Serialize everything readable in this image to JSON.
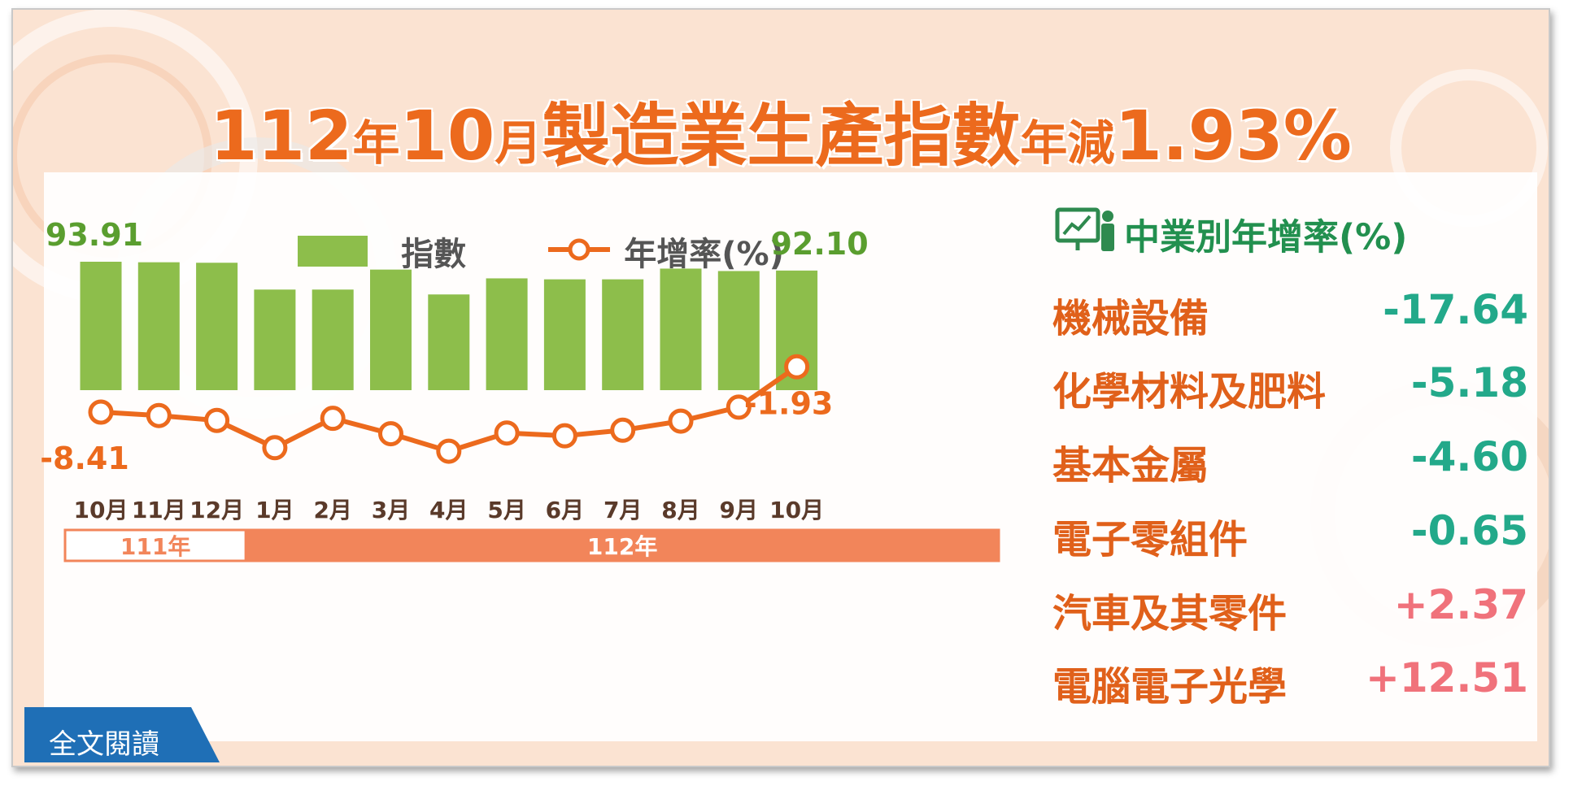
{
  "title": {
    "part1": "112",
    "part2": "年",
    "part3": "10",
    "part4": "月",
    "part5": "製造業生產指數",
    "part6": "年減",
    "part7": "1.93%"
  },
  "legend": {
    "index_label": "指數",
    "rate_label": "年增率(%)"
  },
  "chart_data": {
    "type": "bar",
    "categories": [
      "10月",
      "11月",
      "12月",
      "1月",
      "2月",
      "3月",
      "4月",
      "5月",
      "6月",
      "7月",
      "8月",
      "9月",
      "10月"
    ],
    "year_groups": [
      {
        "label": "111年",
        "months": 3
      },
      {
        "label": "112年",
        "months": 10
      }
    ],
    "series": [
      {
        "name": "指數",
        "type": "bar",
        "color": "#8dbe4b",
        "values": [
          93.91,
          93.8,
          93.7,
          88.2,
          88.2,
          92.3,
          87.2,
          90.5,
          90.3,
          90.3,
          92.5,
          92.0,
          92.1
        ]
      },
      {
        "name": "年增率(%)",
        "type": "line",
        "color": "#ec6a1d",
        "values": [
          -8.41,
          -8.9,
          -9.6,
          -13.5,
          -9.3,
          -11.5,
          -14.0,
          -11.4,
          -11.8,
          -11.0,
          -9.7,
          -7.7,
          -1.93
        ]
      }
    ],
    "data_labels": [
      {
        "series": 0,
        "index": 0,
        "text": "93.91"
      },
      {
        "series": 0,
        "index": 12,
        "text": "92.10"
      },
      {
        "series": 1,
        "index": 0,
        "text": "-8.41"
      },
      {
        "series": 1,
        "index": 12,
        "text": "-1.93"
      }
    ],
    "grid": false,
    "legend_position": "top"
  },
  "industry": {
    "heading": "中業別年增率(%)",
    "icon": "presentation-chart-icon",
    "items": [
      {
        "name": "機械設備",
        "value": "-17.64",
        "color": "#23a98a"
      },
      {
        "name": "化學材料及肥料",
        "value": "-5.18",
        "color": "#23a98a"
      },
      {
        "name": "基本金屬",
        "value": "-4.60",
        "color": "#23a98a"
      },
      {
        "name": "電子零組件",
        "value": "-0.65",
        "color": "#23a98a"
      },
      {
        "name": "汽車及其零件",
        "value": "+2.37",
        "color": "#f0727b"
      },
      {
        "name": "電腦電子光學",
        "value": "+12.51",
        "color": "#f0727b"
      }
    ]
  },
  "read_all": {
    "label": "全文閱讀",
    "color": "#1f6fb6"
  }
}
